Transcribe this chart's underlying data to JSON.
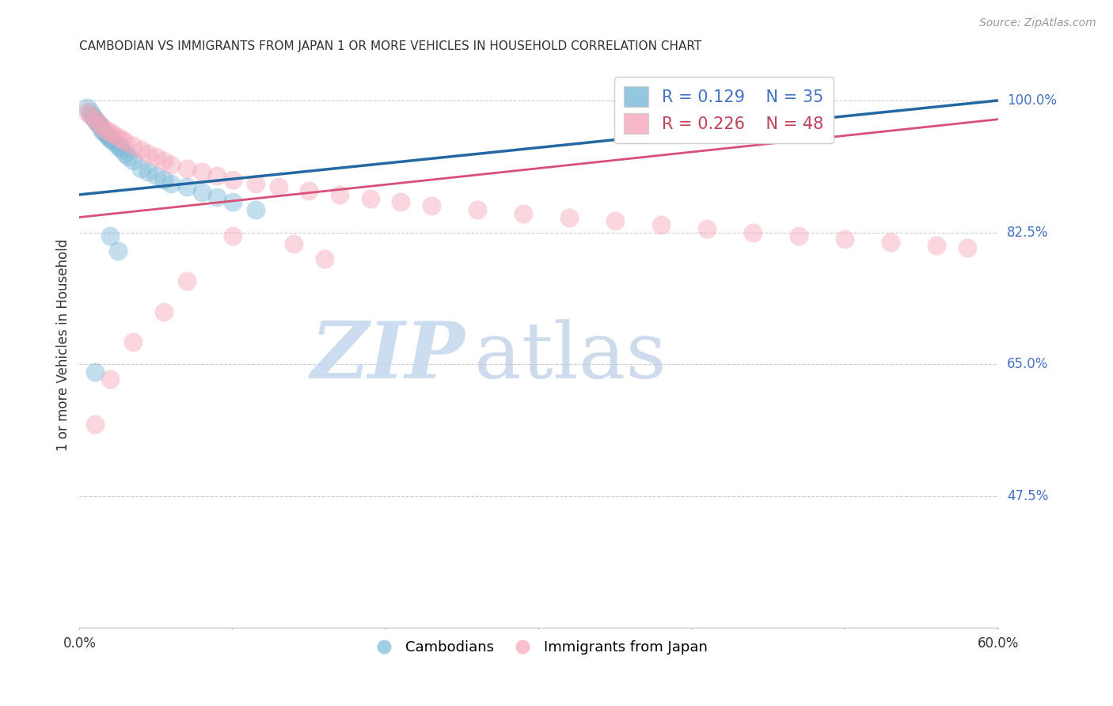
{
  "title": "CAMBODIAN VS IMMIGRANTS FROM JAPAN 1 OR MORE VEHICLES IN HOUSEHOLD CORRELATION CHART",
  "source": "Source: ZipAtlas.com",
  "ylabel": "1 or more Vehicles in Household",
  "xmin": 0.0,
  "xmax": 0.6,
  "ymin": 0.3,
  "ymax": 1.05,
  "yticks": [
    0.475,
    0.65,
    0.825,
    1.0
  ],
  "ytick_labels": [
    "47.5%",
    "65.0%",
    "82.5%",
    "100.0%"
  ],
  "xtick_left": "0.0%",
  "xtick_right": "60.0%",
  "legend_R_blue": "0.129",
  "legend_N_blue": "35",
  "legend_R_pink": "0.226",
  "legend_N_pink": "48",
  "blue_scatter_color": "#7ab8d9",
  "blue_line_color": "#2368a2",
  "pink_scatter_color": "#f4a6b8",
  "pink_line_color": "#d94f7a",
  "blue_regression_x0": 0.0,
  "blue_regression_y0": 0.875,
  "blue_regression_x1": 0.6,
  "blue_regression_y1": 1.0,
  "pink_regression_x0": 0.0,
  "pink_regression_y0": 0.845,
  "pink_regression_x1": 0.6,
  "pink_regression_y1": 0.975,
  "cambodian_x": [
    0.005,
    0.007,
    0.008,
    0.009,
    0.01,
    0.011,
    0.012,
    0.013,
    0.014,
    0.015,
    0.016,
    0.018,
    0.019,
    0.02,
    0.021,
    0.022,
    0.025,
    0.026,
    0.028,
    0.03,
    0.032,
    0.035,
    0.04,
    0.045,
    0.05,
    0.055,
    0.06,
    0.07,
    0.08,
    0.09,
    0.1,
    0.115,
    0.02,
    0.025,
    0.01
  ],
  "cambodian_y": [
    0.99,
    0.985,
    0.98,
    0.978,
    0.975,
    0.972,
    0.97,
    0.968,
    0.965,
    0.96,
    0.958,
    0.955,
    0.952,
    0.95,
    0.948,
    0.945,
    0.94,
    0.938,
    0.935,
    0.93,
    0.925,
    0.92,
    0.91,
    0.905,
    0.9,
    0.895,
    0.89,
    0.885,
    0.878,
    0.872,
    0.865,
    0.855,
    0.82,
    0.8,
    0.64
  ],
  "japan_x": [
    0.005,
    0.007,
    0.01,
    0.012,
    0.015,
    0.018,
    0.02,
    0.022,
    0.025,
    0.028,
    0.03,
    0.035,
    0.04,
    0.045,
    0.05,
    0.055,
    0.06,
    0.07,
    0.08,
    0.09,
    0.1,
    0.115,
    0.13,
    0.15,
    0.17,
    0.19,
    0.21,
    0.23,
    0.26,
    0.29,
    0.32,
    0.35,
    0.38,
    0.41,
    0.44,
    0.47,
    0.5,
    0.53,
    0.56,
    0.58,
    0.1,
    0.14,
    0.16,
    0.07,
    0.055,
    0.035,
    0.02,
    0.01
  ],
  "japan_y": [
    0.985,
    0.98,
    0.975,
    0.97,
    0.965,
    0.96,
    0.958,
    0.955,
    0.952,
    0.948,
    0.945,
    0.94,
    0.935,
    0.93,
    0.925,
    0.92,
    0.915,
    0.91,
    0.905,
    0.9,
    0.895,
    0.89,
    0.885,
    0.88,
    0.875,
    0.87,
    0.865,
    0.86,
    0.855,
    0.85,
    0.845,
    0.84,
    0.835,
    0.83,
    0.825,
    0.82,
    0.816,
    0.812,
    0.808,
    0.805,
    0.82,
    0.81,
    0.79,
    0.76,
    0.72,
    0.68,
    0.63,
    0.57
  ],
  "watermark_zip_color": "#c5d8ee",
  "watermark_atlas_color": "#b8cce4"
}
